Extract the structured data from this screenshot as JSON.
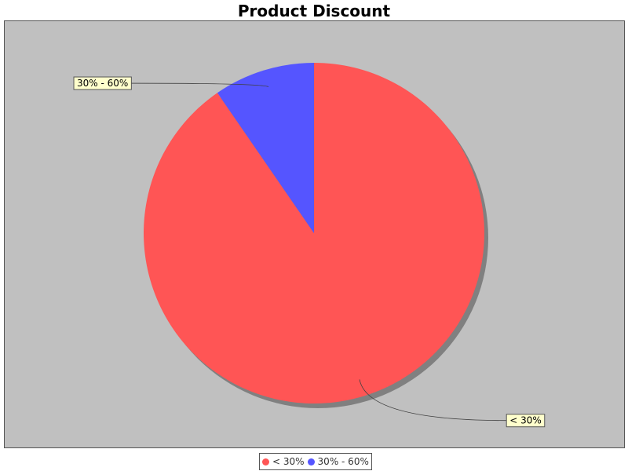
{
  "chart_data": {
    "type": "pie",
    "title": "Product Discount",
    "slices": [
      {
        "label": "< 30%",
        "value": 90.4,
        "color": "#ff5555"
      },
      {
        "label": "30% - 60%",
        "value": 9.6,
        "color": "#5555ff"
      }
    ],
    "legend": {
      "position": "bottom",
      "entries": [
        "< 30%",
        "30% - 60%"
      ]
    },
    "background_color": "#c0c0c0"
  }
}
